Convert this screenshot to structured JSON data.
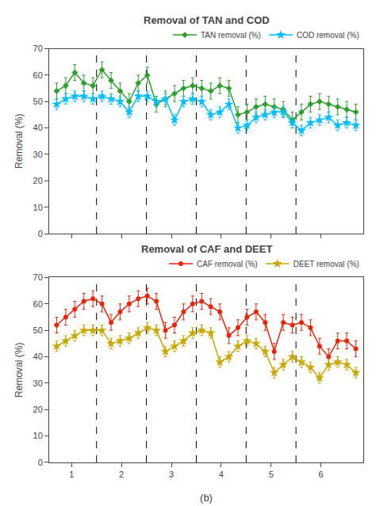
{
  "chart_data": [
    {
      "type": "line",
      "title": "Removal of TAN and COD",
      "ylabel": "Removal (%)",
      "x": [
        0.7,
        0.881818,
        1.063636,
        1.245455,
        1.427273,
        1.609091,
        1.790909,
        1.972727,
        2.154545,
        2.336364,
        2.518182,
        2.7,
        2.881818,
        3.063636,
        3.245455,
        3.427273,
        3.609091,
        3.790909,
        3.972727,
        4.154545,
        4.336364,
        4.518182,
        4.7,
        4.881818,
        5.063636,
        5.245455,
        5.427273,
        5.609091,
        5.790909,
        5.972727,
        6.154545,
        6.336364,
        6.518182,
        6.7
      ],
      "series": [
        {
          "name": "TAN removal (%)",
          "color": "#2ca02c",
          "marker": "diamond",
          "values": [
            54,
            56,
            61,
            57,
            56,
            62,
            58,
            54,
            50,
            57,
            60,
            49,
            51,
            53,
            55,
            56,
            55,
            54,
            56,
            55,
            45,
            46,
            48,
            49,
            48,
            47,
            43,
            46,
            49,
            50,
            49,
            48,
            47,
            46
          ],
          "errors": [
            3,
            3,
            3,
            3,
            3,
            3,
            3,
            3,
            3,
            3,
            3,
            3,
            3,
            3,
            3,
            3,
            3,
            3,
            3,
            3,
            3,
            3,
            3,
            3,
            3,
            3,
            3,
            3,
            3,
            3,
            3,
            3,
            3,
            3
          ]
        },
        {
          "name": "COD removal (%)",
          "color": "#00bfff",
          "marker": "star",
          "values": [
            49,
            51,
            52,
            52,
            51,
            52,
            51,
            50,
            46,
            52,
            52,
            50,
            51,
            43,
            50,
            51,
            50,
            45,
            46,
            49,
            40,
            41,
            44,
            45,
            46,
            46,
            42,
            39,
            42,
            43,
            44,
            41,
            42,
            41
          ],
          "errors": [
            2,
            2,
            2,
            2,
            2,
            2,
            2,
            2,
            2,
            2,
            2,
            2,
            2,
            2,
            2,
            2,
            2,
            2,
            2,
            2,
            2,
            2,
            2,
            2,
            2,
            2,
            2,
            2,
            2,
            2,
            2,
            2,
            2,
            2
          ]
        }
      ],
      "xlim": [
        0.55,
        6.85
      ],
      "xticks": [
        1,
        2,
        3,
        4,
        5,
        6
      ],
      "ylim": [
        0,
        70
      ],
      "yticks": [
        0,
        10,
        20,
        30,
        40,
        50,
        60,
        70
      ],
      "vlines": [
        1.5,
        2.5,
        3.5,
        4.5,
        5.5
      ],
      "tick_labels": "y",
      "grid": false,
      "legend": "upper right"
    },
    {
      "type": "line",
      "title": "Removal of CAF and DEET",
      "xlabel": "(b)",
      "ylabel": "Removal (%)",
      "x": [
        0.7,
        0.881818,
        1.063636,
        1.245455,
        1.427273,
        1.609091,
        1.790909,
        1.972727,
        2.154545,
        2.336364,
        2.518182,
        2.7,
        2.881818,
        3.063636,
        3.245455,
        3.427273,
        3.609091,
        3.790909,
        3.972727,
        4.154545,
        4.336364,
        4.518182,
        4.7,
        4.881818,
        5.063636,
        5.245455,
        5.427273,
        5.609091,
        5.790909,
        5.972727,
        6.154545,
        6.336364,
        6.518182,
        6.7
      ],
      "series": [
        {
          "name": "CAF removal (%)",
          "color": "#e8260a",
          "marker": "circle",
          "values": [
            52,
            55,
            58,
            61,
            62,
            60,
            53,
            57,
            60,
            62,
            63,
            61,
            50,
            52,
            57,
            60,
            61,
            59,
            57,
            48,
            51,
            55,
            57,
            53,
            42,
            53,
            52,
            53,
            51,
            44,
            40,
            46,
            46,
            43
          ],
          "errors": [
            3,
            3,
            3,
            3,
            3,
            3,
            3,
            3,
            3,
            3,
            3,
            3,
            3,
            3,
            3,
            3,
            3,
            3,
            3,
            3,
            3,
            3,
            3,
            3,
            3,
            3,
            3,
            3,
            3,
            3,
            3,
            3,
            3,
            3
          ]
        },
        {
          "name": "DEET removal (%)",
          "color": "#c8a800",
          "marker": "star",
          "values": [
            44,
            46,
            48,
            50,
            50,
            50,
            45,
            46,
            47,
            49,
            51,
            50,
            42,
            44,
            46,
            49,
            50,
            49,
            38,
            40,
            44,
            46,
            45,
            42,
            34,
            37,
            40,
            38,
            36,
            32,
            37,
            38,
            37,
            34
          ],
          "errors": [
            2,
            2,
            2,
            2,
            2,
            2,
            2,
            2,
            2,
            2,
            2,
            2,
            2,
            2,
            2,
            2,
            2,
            2,
            2,
            2,
            2,
            2,
            2,
            2,
            2,
            2,
            2,
            2,
            2,
            2,
            2,
            2,
            2,
            2
          ]
        }
      ],
      "xlim": [
        0.55,
        6.85
      ],
      "xticks": [
        1,
        2,
        3,
        4,
        5,
        6
      ],
      "ylim": [
        0,
        70
      ],
      "yticks": [
        0,
        10,
        20,
        30,
        40,
        50,
        60,
        70
      ],
      "vlines": [
        1.5,
        2.5,
        3.5,
        4.5,
        5.5
      ],
      "grid": false,
      "legend": "upper right"
    }
  ]
}
